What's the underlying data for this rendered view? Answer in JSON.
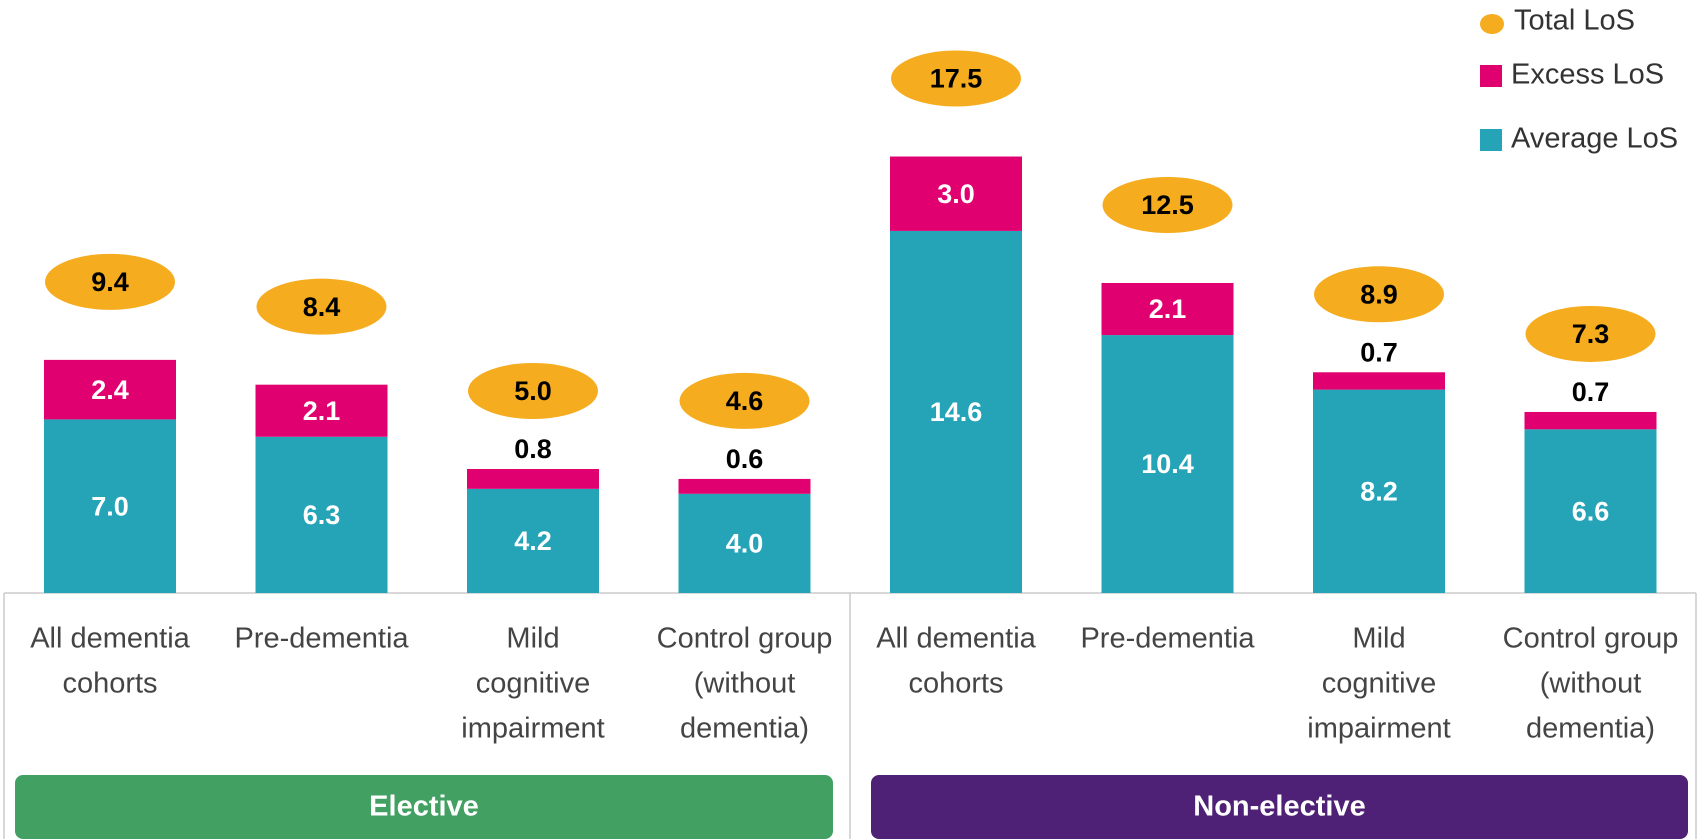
{
  "chart_data": {
    "type": "stacked-bar",
    "categories": [
      [
        "All dementia",
        "cohorts"
      ],
      [
        "Pre-dementia"
      ],
      [
        "Mild",
        "cognitive",
        "impairment"
      ],
      [
        "Control group",
        "(without",
        "dementia)"
      ],
      [
        "All dementia",
        "cohorts"
      ],
      [
        "Pre-dementia"
      ],
      [
        "Mild",
        "cognitive",
        "impairment"
      ],
      [
        "Control group",
        "(without",
        "dementia)"
      ]
    ],
    "groups": [
      {
        "name": "Elective",
        "color": "#41a062",
        "size": 4
      },
      {
        "name": "Non-elective",
        "color": "#4f2176",
        "size": 4
      }
    ],
    "series": [
      {
        "name": "Average LoS",
        "color": "#25a4b8",
        "values": [
          7,
          6.3,
          4.2,
          4,
          14.6,
          10.4,
          8.2,
          6.6
        ],
        "value_labels": [
          "7.0",
          "6.3",
          "4.2",
          "4.0",
          "14.6",
          "10.4",
          "8.2",
          "6.6"
        ]
      },
      {
        "name": "Excess LoS",
        "color": "#e0006f",
        "values": [
          2.4,
          2.1,
          0.8,
          0.6,
          3,
          2.1,
          0.7,
          0.7
        ],
        "value_labels": [
          "2.4",
          "2.1",
          "0.8",
          "0.6",
          "3.0",
          "2.1",
          "0.7",
          "0.7"
        ]
      }
    ],
    "total": {
      "name": "Total LoS",
      "color": "#f5ac1f",
      "values": [
        9.4,
        8.4,
        5,
        4.6,
        17.5,
        12.5,
        8.9,
        7.3
      ],
      "value_labels": [
        "9.4",
        "8.4",
        "5.0",
        "4.6",
        "17.5",
        "12.5",
        "8.9",
        "7.3"
      ]
    }
  }
}
